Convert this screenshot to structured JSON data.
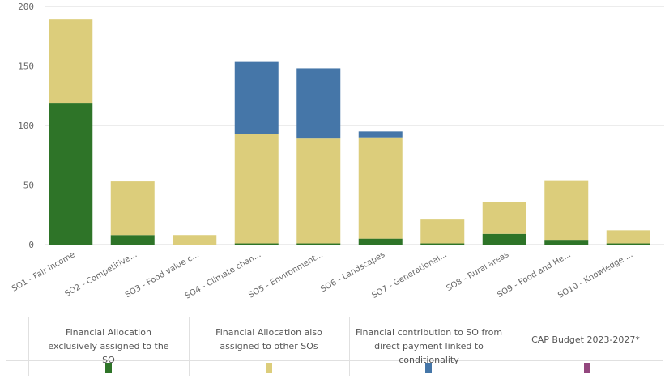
{
  "chart_data": {
    "type": "bar",
    "stacked": true,
    "categories": [
      "SO1 - Fair income",
      "SO2 - Competitive...",
      "SO3 - Food value c...",
      "SO4 - Climate chan...",
      "SO5 - Environment...",
      "SO6 - Landscapes",
      "SO7 - Generational...",
      "SO8 - Rural areas",
      "SO9 - Food and He...",
      "SO10 - Knowledge ..."
    ],
    "series": [
      {
        "name": "Financial Allocation exclusively assigned to the SO",
        "color": "#2e7428",
        "values": [
          119,
          8,
          0,
          1,
          1,
          5,
          1,
          9,
          4,
          1
        ]
      },
      {
        "name": "Financial Allocation also assigned to other SOs",
        "color": "#dccd7b",
        "values": [
          70,
          45,
          8,
          92,
          88,
          85,
          20,
          27,
          50,
          11
        ]
      },
      {
        "name": "Financial contribution to SO from direct payment linked to conditionality",
        "color": "#4576a8",
        "values": [
          0,
          0,
          0,
          61,
          59,
          5,
          0,
          0,
          0,
          0
        ]
      },
      {
        "name": "CAP Budget 2023-2027*",
        "color": "#93477e",
        "values": [
          0,
          0,
          0,
          0,
          0,
          0,
          0,
          0,
          0,
          0
        ]
      }
    ],
    "yticks": [
      0,
      50,
      100,
      150,
      200
    ],
    "ylim": [
      0,
      200
    ],
    "grid": true,
    "legend_position": "bottom"
  }
}
